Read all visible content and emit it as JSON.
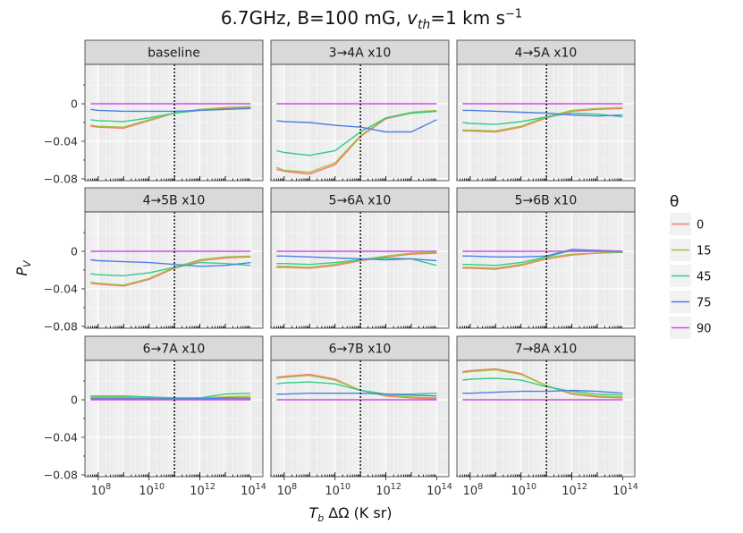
{
  "title": {
    "prefix": "6.7GHz, B=100 mG, ",
    "v_symbol": "v",
    "v_sub": "th",
    "mid": "=1 km s",
    "sup": "−1"
  },
  "axes": {
    "ylabel_main": "P",
    "ylabel_sub": "V",
    "xlabel_main": "T",
    "xlabel_sub": "b",
    "xlabel_rest": "ΔΩ (K sr)",
    "y_ticks": [
      "0",
      "−0.04",
      "−0.08"
    ],
    "x_ticks": [
      {
        "base": "10",
        "exp": "8"
      },
      {
        "base": "10",
        "exp": "10"
      },
      {
        "base": "10",
        "exp": "12"
      },
      {
        "base": "10",
        "exp": "14"
      }
    ]
  },
  "legend": {
    "title": "θ",
    "entries": [
      {
        "label": "0",
        "color": "#F8766D"
      },
      {
        "label": "15",
        "color": "#A3C23D"
      },
      {
        "label": "45",
        "color": "#2FCE87"
      },
      {
        "label": "75",
        "color": "#4C7FE6"
      },
      {
        "label": "90",
        "color": "#CF4CE8"
      }
    ]
  },
  "chart_data": {
    "type": "line",
    "x_scale": "log10",
    "xlim": [
      30000000.0,
      300000000000000.0
    ],
    "ylim": [
      -0.082,
      0.042
    ],
    "grid": true,
    "legend_position": "right",
    "reference_line_x": 100000000000.0,
    "x": [
      50000000.0,
      100000000.0,
      1000000000.0,
      10000000000.0,
      100000000000.0,
      1000000000000.0,
      10000000000000.0,
      100000000000000.0
    ],
    "panels": [
      {
        "name": "baseline",
        "series": [
          {
            "name": "0",
            "values": [
              -0.024,
              -0.025,
              -0.026,
              -0.018,
              -0.01,
              -0.006,
              -0.005,
              -0.004
            ]
          },
          {
            "name": "15",
            "values": [
              -0.023,
              -0.024,
              -0.025,
              -0.017,
              -0.01,
              -0.006,
              -0.004,
              -0.003
            ]
          },
          {
            "name": "45",
            "values": [
              -0.017,
              -0.018,
              -0.019,
              -0.015,
              -0.01,
              -0.007,
              -0.006,
              -0.005
            ]
          },
          {
            "name": "75",
            "values": [
              -0.006,
              -0.007,
              -0.008,
              -0.008,
              -0.008,
              -0.007,
              -0.006,
              -0.005
            ]
          },
          {
            "name": "90",
            "values": [
              0,
              0,
              0,
              0,
              0,
              0,
              0,
              0
            ]
          }
        ]
      },
      {
        "name": "3→4A x10",
        "series": [
          {
            "name": "0",
            "values": [
              -0.07,
              -0.072,
              -0.075,
              -0.065,
              -0.035,
              -0.016,
              -0.01,
              -0.008
            ]
          },
          {
            "name": "15",
            "values": [
              -0.068,
              -0.071,
              -0.073,
              -0.063,
              -0.034,
              -0.015,
              -0.009,
              -0.007
            ]
          },
          {
            "name": "45",
            "values": [
              -0.05,
              -0.052,
              -0.055,
              -0.05,
              -0.03,
              -0.015,
              -0.01,
              -0.008
            ]
          },
          {
            "name": "75",
            "values": [
              -0.018,
              -0.019,
              -0.02,
              -0.023,
              -0.025,
              -0.03,
              -0.03,
              -0.017
            ]
          },
          {
            "name": "90",
            "values": [
              0,
              0,
              0,
              0,
              0,
              0,
              0,
              0
            ]
          }
        ]
      },
      {
        "name": "4→5A x10",
        "series": [
          {
            "name": "0",
            "values": [
              -0.029,
              -0.029,
              -0.03,
              -0.025,
              -0.015,
              -0.008,
              -0.006,
              -0.005
            ]
          },
          {
            "name": "15",
            "values": [
              -0.028,
              -0.028,
              -0.029,
              -0.024,
              -0.014,
              -0.007,
              -0.005,
              -0.004
            ]
          },
          {
            "name": "45",
            "values": [
              -0.02,
              -0.021,
              -0.022,
              -0.019,
              -0.014,
              -0.01,
              -0.011,
              -0.014
            ]
          },
          {
            "name": "75",
            "values": [
              -0.007,
              -0.007,
              -0.008,
              -0.009,
              -0.01,
              -0.012,
              -0.013,
              -0.012
            ]
          },
          {
            "name": "90",
            "values": [
              0,
              0,
              0,
              0,
              0,
              0,
              0,
              0
            ]
          }
        ]
      },
      {
        "name": "4→5B x10",
        "series": [
          {
            "name": "0",
            "values": [
              -0.034,
              -0.035,
              -0.037,
              -0.03,
              -0.018,
              -0.01,
              -0.007,
              -0.006
            ]
          },
          {
            "name": "15",
            "values": [
              -0.033,
              -0.034,
              -0.036,
              -0.029,
              -0.017,
              -0.009,
              -0.006,
              -0.005
            ]
          },
          {
            "name": "45",
            "values": [
              -0.024,
              -0.025,
              -0.026,
              -0.023,
              -0.017,
              -0.012,
              -0.013,
              -0.015
            ]
          },
          {
            "name": "75",
            "values": [
              -0.009,
              -0.01,
              -0.011,
              -0.012,
              -0.014,
              -0.016,
              -0.015,
              -0.012
            ]
          },
          {
            "name": "90",
            "values": [
              0,
              0,
              0,
              0,
              0,
              0,
              0,
              0
            ]
          }
        ]
      },
      {
        "name": "5→6A x10",
        "series": [
          {
            "name": "0",
            "values": [
              -0.017,
              -0.017,
              -0.018,
              -0.015,
              -0.01,
              -0.006,
              -0.003,
              -0.002
            ]
          },
          {
            "name": "15",
            "values": [
              -0.016,
              -0.016,
              -0.017,
              -0.014,
              -0.009,
              -0.005,
              -0.002,
              -0.001
            ]
          },
          {
            "name": "45",
            "values": [
              -0.013,
              -0.013,
              -0.014,
              -0.012,
              -0.009,
              -0.007,
              -0.008,
              -0.015
            ]
          },
          {
            "name": "75",
            "values": [
              -0.005,
              -0.005,
              -0.006,
              -0.007,
              -0.008,
              -0.009,
              -0.008,
              -0.01
            ]
          },
          {
            "name": "90",
            "values": [
              0,
              0,
              0,
              0,
              0,
              0,
              0,
              0
            ]
          }
        ]
      },
      {
        "name": "5→6B x10",
        "series": [
          {
            "name": "0",
            "values": [
              -0.018,
              -0.018,
              -0.019,
              -0.015,
              -0.008,
              -0.004,
              -0.002,
              -0.001
            ]
          },
          {
            "name": "15",
            "values": [
              -0.017,
              -0.017,
              -0.018,
              -0.014,
              -0.007,
              -0.003,
              -0.002,
              -0.001
            ]
          },
          {
            "name": "45",
            "values": [
              -0.014,
              -0.014,
              -0.015,
              -0.012,
              -0.006,
              0.001,
              0.0,
              -0.001
            ]
          },
          {
            "name": "75",
            "values": [
              -0.005,
              -0.005,
              -0.006,
              -0.006,
              -0.005,
              0.002,
              0.001,
              0.0
            ]
          },
          {
            "name": "90",
            "values": [
              0,
              0,
              0,
              0,
              0,
              0,
              0,
              0
            ]
          }
        ]
      },
      {
        "name": "6→7A x10",
        "series": [
          {
            "name": "0",
            "values": [
              0.002,
              0.002,
              0.002,
              0.002,
              0.001,
              0.001,
              0.001,
              0.001
            ]
          },
          {
            "name": "15",
            "values": [
              0.003,
              0.003,
              0.003,
              0.003,
              0.002,
              0.002,
              0.003,
              0.004
            ]
          },
          {
            "name": "45",
            "values": [
              0.004,
              0.004,
              0.004,
              0.003,
              0.002,
              0.002,
              0.006,
              0.007
            ]
          },
          {
            "name": "75",
            "values": [
              0.001,
              0.001,
              0.001,
              0.001,
              0.001,
              0.001,
              0.002,
              0.002
            ]
          },
          {
            "name": "90",
            "values": [
              0,
              0,
              0,
              0,
              0,
              0,
              0,
              0
            ]
          }
        ]
      },
      {
        "name": "6→7B x10",
        "series": [
          {
            "name": "0",
            "values": [
              0.024,
              0.025,
              0.027,
              0.022,
              0.01,
              0.004,
              0.002,
              0.001
            ]
          },
          {
            "name": "15",
            "values": [
              0.023,
              0.024,
              0.026,
              0.021,
              0.01,
              0.005,
              0.003,
              0.002
            ]
          },
          {
            "name": "45",
            "values": [
              0.017,
              0.018,
              0.019,
              0.017,
              0.01,
              0.006,
              0.006,
              0.007
            ]
          },
          {
            "name": "75",
            "values": [
              0.006,
              0.006,
              0.007,
              0.007,
              0.007,
              0.006,
              0.005,
              0.004
            ]
          },
          {
            "name": "90",
            "values": [
              0,
              0,
              0,
              0,
              0,
              0,
              0,
              0
            ]
          }
        ]
      },
      {
        "name": "7→8A x10",
        "series": [
          {
            "name": "0",
            "values": [
              0.03,
              0.031,
              0.033,
              0.028,
              0.015,
              0.006,
              0.003,
              0.002
            ]
          },
          {
            "name": "15",
            "values": [
              0.029,
              0.03,
              0.032,
              0.027,
              0.015,
              0.007,
              0.004,
              0.003
            ]
          },
          {
            "name": "45",
            "values": [
              0.021,
              0.022,
              0.023,
              0.021,
              0.014,
              0.009,
              0.006,
              0.005
            ]
          },
          {
            "name": "75",
            "values": [
              0.007,
              0.007,
              0.008,
              0.009,
              0.009,
              0.01,
              0.009,
              0.007
            ]
          },
          {
            "name": "90",
            "values": [
              0,
              0,
              0,
              0,
              0,
              0,
              0,
              0
            ]
          }
        ]
      }
    ]
  }
}
